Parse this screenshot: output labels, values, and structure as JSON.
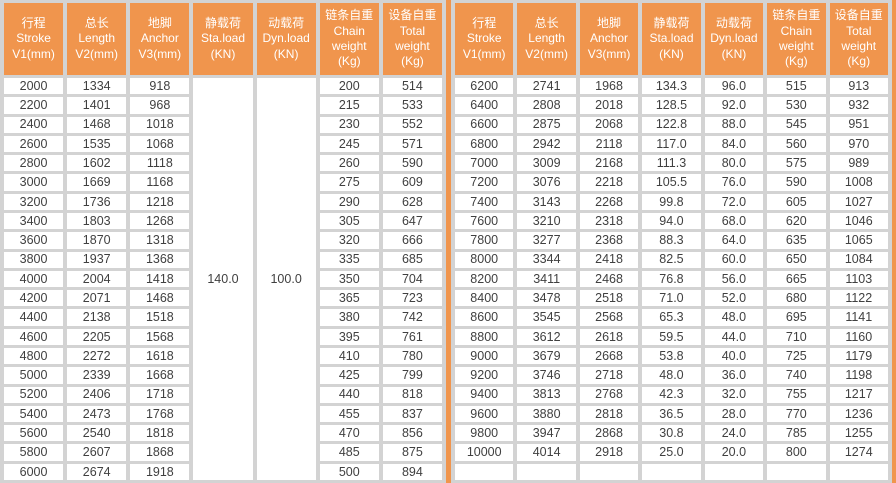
{
  "colors": {
    "accent": "#F0954D",
    "grid": "#D3D3D3",
    "cell_text": "#404040",
    "header_text": "#FFFFFF"
  },
  "header_columns": [
    "行程\nStroke\nV1(mm)",
    "总长\nLength\nV2(mm)",
    "地脚\nAnchor\nV3(mm)",
    "静载荷\nSta.load\n(KN)",
    "动载荷\nDyn.load\n(KN)",
    "链条自重\nChain\nweight\n(Kg)",
    "设备自重\nTotal\nweight\n(Kg)"
  ],
  "left_table": {
    "sta_load": "140.0",
    "dyn_load": "100.0",
    "rows": [
      {
        "stroke": "2000",
        "length": "1334",
        "anchor": "918",
        "chain": "200",
        "total": "514"
      },
      {
        "stroke": "2200",
        "length": "1401",
        "anchor": "968",
        "chain": "215",
        "total": "533"
      },
      {
        "stroke": "2400",
        "length": "1468",
        "anchor": "1018",
        "chain": "230",
        "total": "552"
      },
      {
        "stroke": "2600",
        "length": "1535",
        "anchor": "1068",
        "chain": "245",
        "total": "571"
      },
      {
        "stroke": "2800",
        "length": "1602",
        "anchor": "1118",
        "chain": "260",
        "total": "590"
      },
      {
        "stroke": "3000",
        "length": "1669",
        "anchor": "1168",
        "chain": "275",
        "total": "609"
      },
      {
        "stroke": "3200",
        "length": "1736",
        "anchor": "1218",
        "chain": "290",
        "total": "628"
      },
      {
        "stroke": "3400",
        "length": "1803",
        "anchor": "1268",
        "chain": "305",
        "total": "647"
      },
      {
        "stroke": "3600",
        "length": "1870",
        "anchor": "1318",
        "chain": "320",
        "total": "666"
      },
      {
        "stroke": "3800",
        "length": "1937",
        "anchor": "1368",
        "chain": "335",
        "total": "685"
      },
      {
        "stroke": "4000",
        "length": "2004",
        "anchor": "1418",
        "chain": "350",
        "total": "704"
      },
      {
        "stroke": "4200",
        "length": "2071",
        "anchor": "1468",
        "chain": "365",
        "total": "723"
      },
      {
        "stroke": "4400",
        "length": "2138",
        "anchor": "1518",
        "chain": "380",
        "total": "742"
      },
      {
        "stroke": "4600",
        "length": "2205",
        "anchor": "1568",
        "chain": "395",
        "total": "761"
      },
      {
        "stroke": "4800",
        "length": "2272",
        "anchor": "1618",
        "chain": "410",
        "total": "780"
      },
      {
        "stroke": "5000",
        "length": "2339",
        "anchor": "1668",
        "chain": "425",
        "total": "799"
      },
      {
        "stroke": "5200",
        "length": "2406",
        "anchor": "1718",
        "chain": "440",
        "total": "818"
      },
      {
        "stroke": "5400",
        "length": "2473",
        "anchor": "1768",
        "chain": "455",
        "total": "837"
      },
      {
        "stroke": "5600",
        "length": "2540",
        "anchor": "1818",
        "chain": "470",
        "total": "856"
      },
      {
        "stroke": "5800",
        "length": "2607",
        "anchor": "1868",
        "chain": "485",
        "total": "875"
      },
      {
        "stroke": "6000",
        "length": "2674",
        "anchor": "1918",
        "chain": "500",
        "total": "894"
      }
    ]
  },
  "right_table": {
    "rows": [
      {
        "stroke": "6200",
        "length": "2741",
        "anchor": "1968",
        "sta": "134.3",
        "dyn": "96.0",
        "chain": "515",
        "total": "913"
      },
      {
        "stroke": "6400",
        "length": "2808",
        "anchor": "2018",
        "sta": "128.5",
        "dyn": "92.0",
        "chain": "530",
        "total": "932"
      },
      {
        "stroke": "6600",
        "length": "2875",
        "anchor": "2068",
        "sta": "122.8",
        "dyn": "88.0",
        "chain": "545",
        "total": "951"
      },
      {
        "stroke": "6800",
        "length": "2942",
        "anchor": "2118",
        "sta": "117.0",
        "dyn": "84.0",
        "chain": "560",
        "total": "970"
      },
      {
        "stroke": "7000",
        "length": "3009",
        "anchor": "2168",
        "sta": "111.3",
        "dyn": "80.0",
        "chain": "575",
        "total": "989"
      },
      {
        "stroke": "7200",
        "length": "3076",
        "anchor": "2218",
        "sta": "105.5",
        "dyn": "76.0",
        "chain": "590",
        "total": "1008"
      },
      {
        "stroke": "7400",
        "length": "3143",
        "anchor": "2268",
        "sta": "99.8",
        "dyn": "72.0",
        "chain": "605",
        "total": "1027"
      },
      {
        "stroke": "7600",
        "length": "3210",
        "anchor": "2318",
        "sta": "94.0",
        "dyn": "68.0",
        "chain": "620",
        "total": "1046"
      },
      {
        "stroke": "7800",
        "length": "3277",
        "anchor": "2368",
        "sta": "88.3",
        "dyn": "64.0",
        "chain": "635",
        "total": "1065"
      },
      {
        "stroke": "8000",
        "length": "3344",
        "anchor": "2418",
        "sta": "82.5",
        "dyn": "60.0",
        "chain": "650",
        "total": "1084"
      },
      {
        "stroke": "8200",
        "length": "3411",
        "anchor": "2468",
        "sta": "76.8",
        "dyn": "56.0",
        "chain": "665",
        "total": "1103"
      },
      {
        "stroke": "8400",
        "length": "3478",
        "anchor": "2518",
        "sta": "71.0",
        "dyn": "52.0",
        "chain": "680",
        "total": "1122"
      },
      {
        "stroke": "8600",
        "length": "3545",
        "anchor": "2568",
        "sta": "65.3",
        "dyn": "48.0",
        "chain": "695",
        "total": "1141"
      },
      {
        "stroke": "8800",
        "length": "3612",
        "anchor": "2618",
        "sta": "59.5",
        "dyn": "44.0",
        "chain": "710",
        "total": "1160"
      },
      {
        "stroke": "9000",
        "length": "3679",
        "anchor": "2668",
        "sta": "53.8",
        "dyn": "40.0",
        "chain": "725",
        "total": "1179"
      },
      {
        "stroke": "9200",
        "length": "3746",
        "anchor": "2718",
        "sta": "48.0",
        "dyn": "36.0",
        "chain": "740",
        "total": "1198"
      },
      {
        "stroke": "9400",
        "length": "3813",
        "anchor": "2768",
        "sta": "42.3",
        "dyn": "32.0",
        "chain": "755",
        "total": "1217"
      },
      {
        "stroke": "9600",
        "length": "3880",
        "anchor": "2818",
        "sta": "36.5",
        "dyn": "28.0",
        "chain": "770",
        "total": "1236"
      },
      {
        "stroke": "9800",
        "length": "3947",
        "anchor": "2868",
        "sta": "30.8",
        "dyn": "24.0",
        "chain": "785",
        "total": "1255"
      },
      {
        "stroke": "10000",
        "length": "4014",
        "anchor": "2918",
        "sta": "25.0",
        "dyn": "20.0",
        "chain": "800",
        "total": "1274"
      },
      {
        "stroke": "",
        "length": "",
        "anchor": "",
        "sta": "",
        "dyn": "",
        "chain": "",
        "total": ""
      }
    ]
  }
}
